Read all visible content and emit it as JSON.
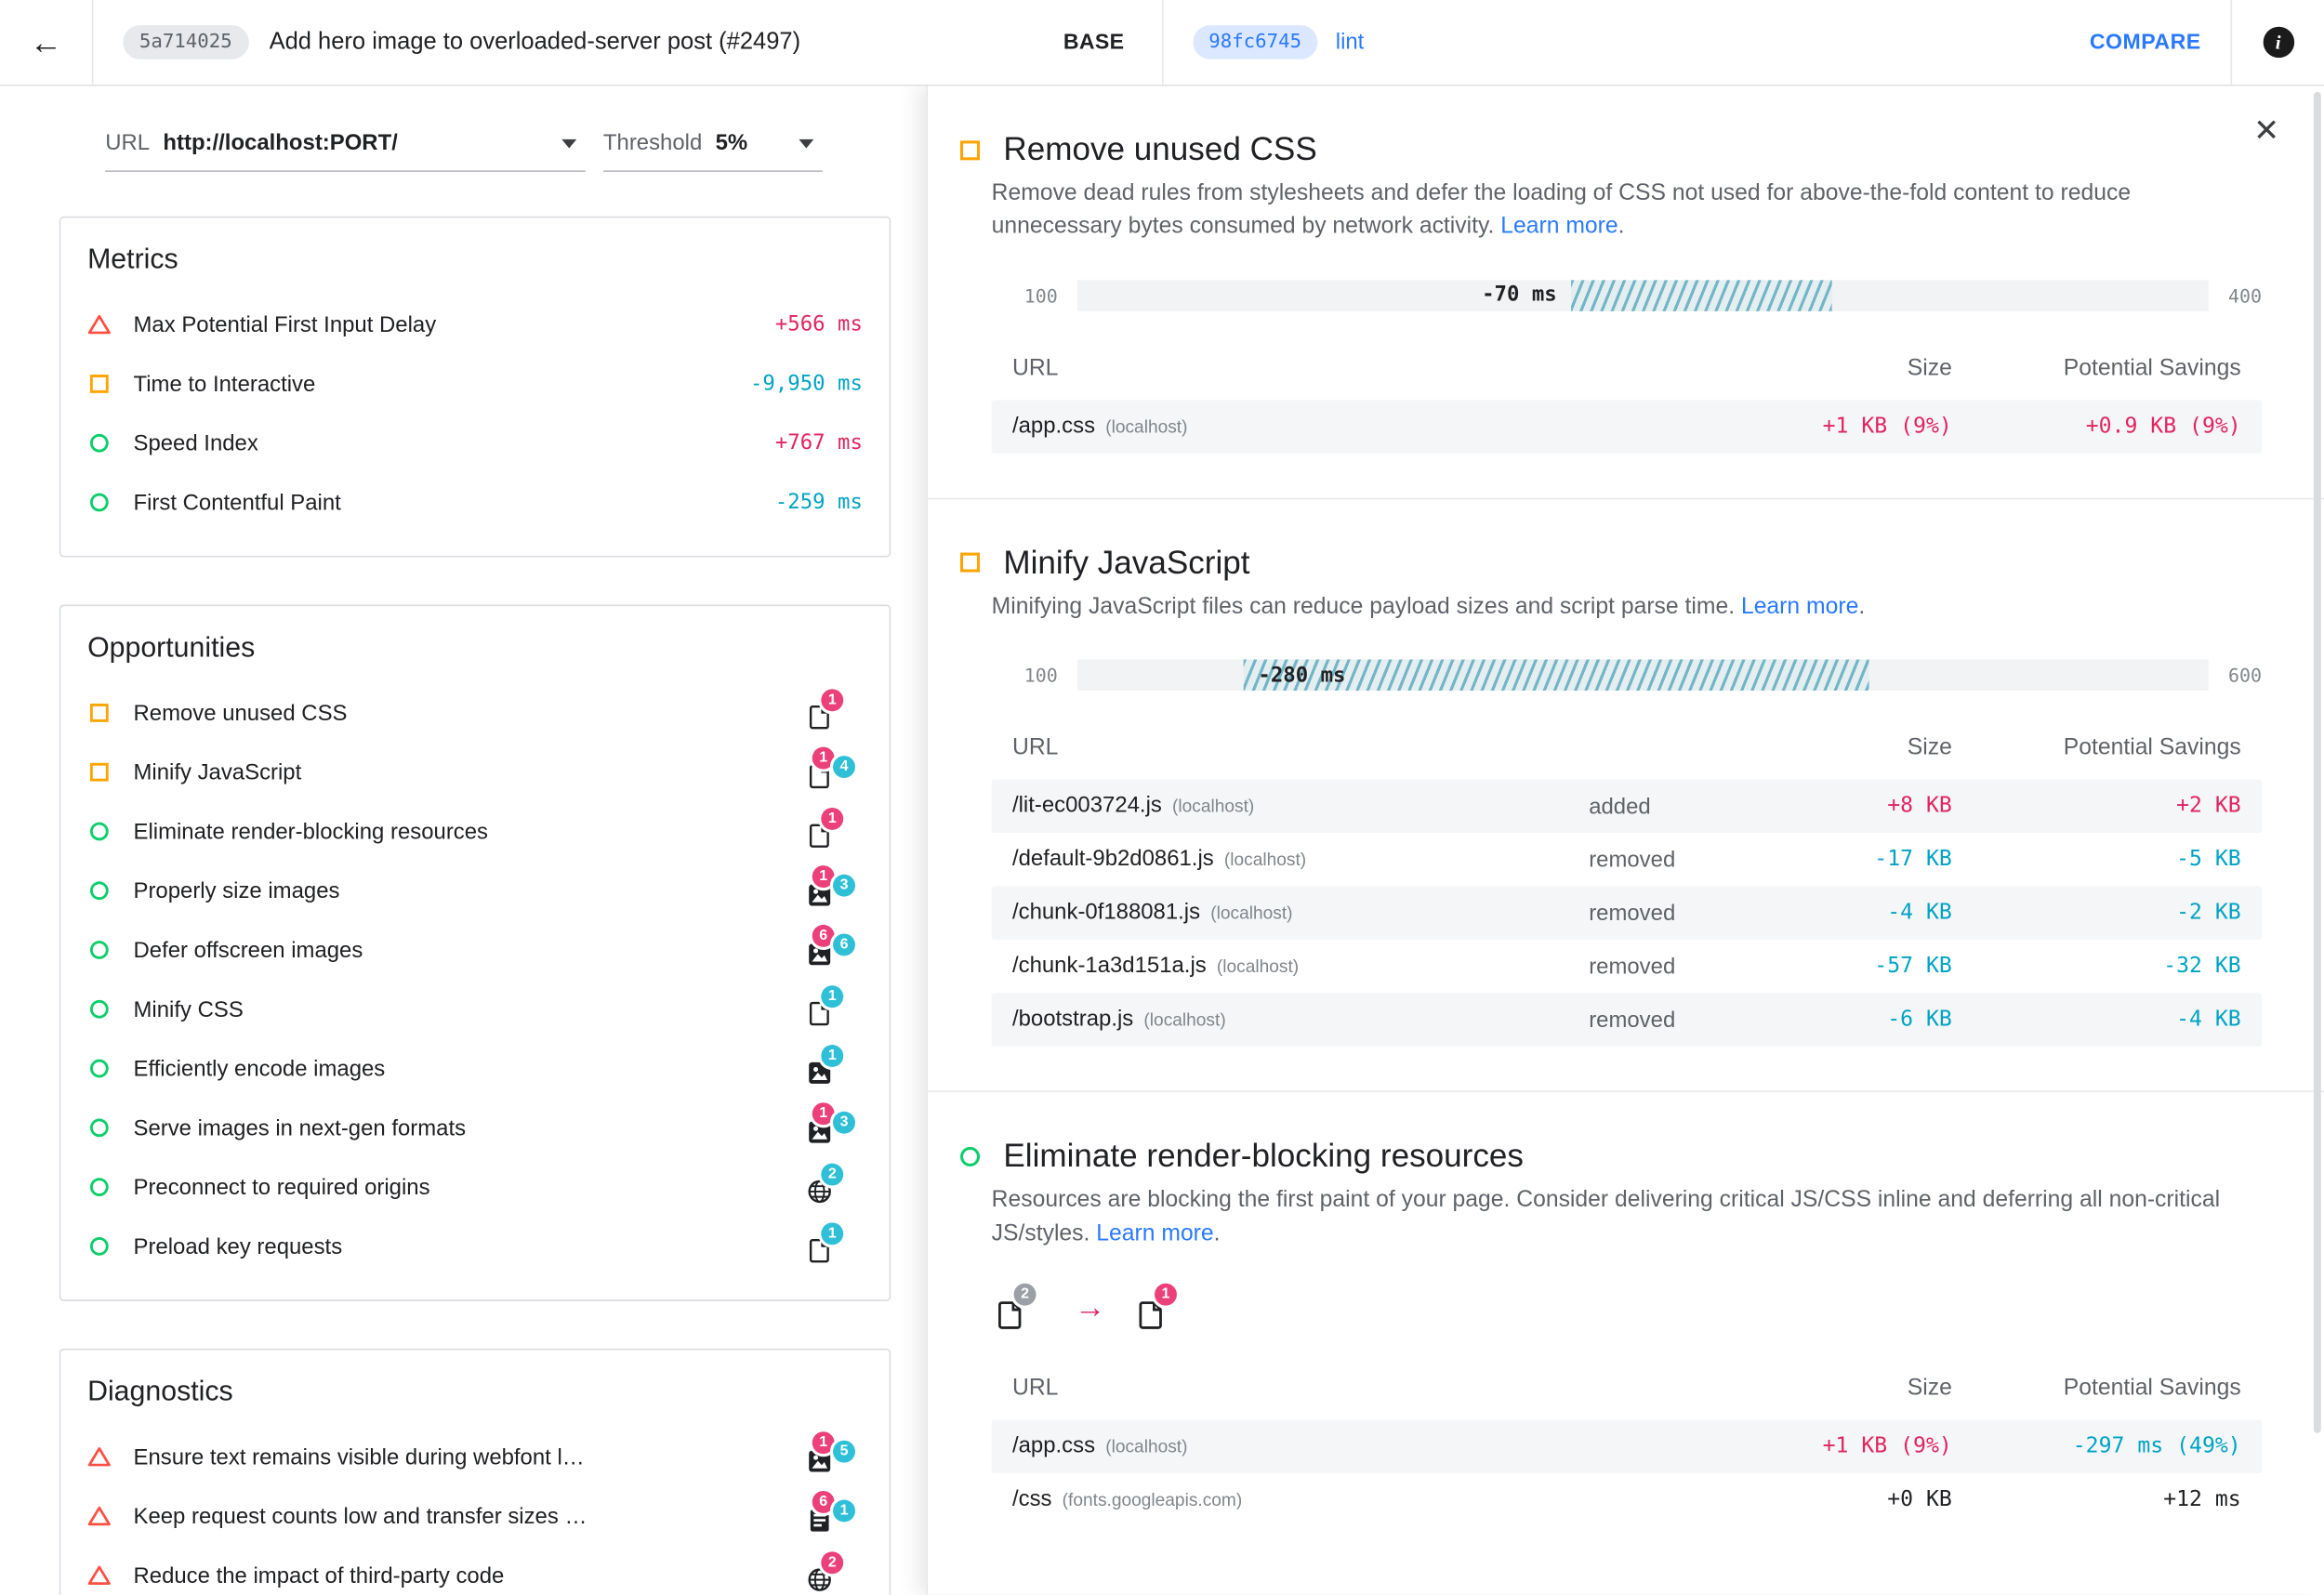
{
  "topbar": {
    "back_icon": "←",
    "base_hash": "5a714025",
    "base_title": "Add hero image to overloaded-server post (#2497)",
    "base_label": "BASE",
    "compare_hash": "98fc6745",
    "compare_name": "lint",
    "compare_label": "COMPARE",
    "info_icon": "i"
  },
  "controls": {
    "url_label": "URL",
    "url_value": "http://localhost:PORT/",
    "threshold_label": "Threshold",
    "threshold_value": "5%"
  },
  "left": {
    "metrics": {
      "title": "Metrics",
      "rows": [
        {
          "status": "fail",
          "label": "Max Potential First Input Delay",
          "value": "+566 ms",
          "trend": "bad"
        },
        {
          "status": "average",
          "label": "Time to Interactive",
          "value": "-9,950 ms",
          "trend": "good"
        },
        {
          "status": "pass",
          "label": "Speed Index",
          "value": "+767 ms",
          "trend": "bad"
        },
        {
          "status": "pass",
          "label": "First Contentful Paint",
          "value": "-259 ms",
          "trend": "good"
        }
      ]
    },
    "opportunities": {
      "title": "Opportunities",
      "rows": [
        {
          "status": "average",
          "label": "Remove unused CSS",
          "resource": "doc",
          "badges": [
            {
              "text": "1",
              "tone": "bad"
            }
          ]
        },
        {
          "status": "average",
          "label": "Minify JavaScript",
          "resource": "doc",
          "badges": [
            {
              "text": "1",
              "tone": "bad"
            },
            {
              "text": "4",
              "tone": "good"
            }
          ]
        },
        {
          "status": "pass",
          "label": "Eliminate render-blocking resources",
          "resource": "doc",
          "badges": [
            {
              "text": "1",
              "tone": "bad"
            }
          ]
        },
        {
          "status": "pass",
          "label": "Properly size images",
          "resource": "image",
          "badges": [
            {
              "text": "1",
              "tone": "bad"
            },
            {
              "text": "3",
              "tone": "good"
            }
          ]
        },
        {
          "status": "pass",
          "label": "Defer offscreen images",
          "resource": "image",
          "badges": [
            {
              "text": "6",
              "tone": "bad"
            },
            {
              "text": "6",
              "tone": "good"
            }
          ]
        },
        {
          "status": "pass",
          "label": "Minify CSS",
          "resource": "doc",
          "badges": [
            {
              "text": "1",
              "tone": "good"
            }
          ]
        },
        {
          "status": "pass",
          "label": "Efficiently encode images",
          "resource": "image",
          "badges": [
            {
              "text": "1",
              "tone": "good"
            }
          ]
        },
        {
          "status": "pass",
          "label": "Serve images in next-gen formats",
          "resource": "image",
          "badges": [
            {
              "text": "1",
              "tone": "bad"
            },
            {
              "text": "3",
              "tone": "good"
            }
          ]
        },
        {
          "status": "pass",
          "label": "Preconnect to required origins",
          "resource": "globe",
          "badges": [
            {
              "text": "2",
              "tone": "good"
            }
          ]
        },
        {
          "status": "pass",
          "label": "Preload key requests",
          "resource": "doc",
          "badges": [
            {
              "text": "1",
              "tone": "good"
            }
          ]
        }
      ]
    },
    "diagnostics": {
      "title": "Diagnostics",
      "rows": [
        {
          "status": "fail",
          "label": "Ensure text remains visible during webfont l…",
          "resource": "image",
          "badges": [
            {
              "text": "1",
              "tone": "bad"
            },
            {
              "text": "5",
              "tone": "good"
            }
          ]
        },
        {
          "status": "fail",
          "label": "Keep request counts low and transfer sizes …",
          "resource": "list",
          "badges": [
            {
              "text": "6",
              "tone": "bad"
            },
            {
              "text": "1",
              "tone": "good"
            }
          ]
        },
        {
          "status": "fail",
          "label": "Reduce the impact of third-party code",
          "resource": "globe",
          "badges": [
            {
              "text": "2",
              "tone": "bad"
            }
          ]
        }
      ]
    }
  },
  "details": {
    "close_icon": "✕",
    "sections": [
      {
        "status": "average",
        "title": "Remove unused CSS",
        "description": "Remove dead rules from stylesheets and defer the loading of CSS not used for above-the-fold content to reduce unnecessary bytes consumed by network activity.",
        "learn_more": "Learn more",
        "range": {
          "min": "100",
          "max": "400",
          "label": "-70 ms",
          "hatch_left": 43.7,
          "hatch_width": 23,
          "label_inside": false
        },
        "columns": {
          "url": "URL",
          "size": "Size",
          "savings": "Potential Savings"
        },
        "rows": [
          {
            "file": "/app.css",
            "host": "(localhost)",
            "state": "",
            "size": "+1 KB (9%)",
            "size_trend": "bad",
            "savings": "+0.9 KB (9%)",
            "savings_trend": "bad"
          }
        ]
      },
      {
        "status": "average",
        "title": "Minify JavaScript",
        "description": "Minifying JavaScript files can reduce payload sizes and script parse time.",
        "learn_more": "Learn more",
        "range": {
          "min": "100",
          "max": "600",
          "label": "-280 ms",
          "hatch_left": 14.7,
          "hatch_width": 55.3,
          "label_inside": true
        },
        "columns": {
          "url": "URL",
          "size": "Size",
          "savings": "Potential Savings"
        },
        "rows": [
          {
            "file": "/lit-ec003724.js",
            "host": "(localhost)",
            "state": "added",
            "size": "+8 KB",
            "size_trend": "bad",
            "savings": "+2 KB",
            "savings_trend": "bad"
          },
          {
            "file": "/default-9b2d0861.js",
            "host": "(localhost)",
            "state": "removed",
            "size": "-17 KB",
            "size_trend": "good",
            "savings": "-5 KB",
            "savings_trend": "good"
          },
          {
            "file": "/chunk-0f188081.js",
            "host": "(localhost)",
            "state": "removed",
            "size": "-4 KB",
            "size_trend": "good",
            "savings": "-2 KB",
            "savings_trend": "good"
          },
          {
            "file": "/chunk-1a3d151a.js",
            "host": "(localhost)",
            "state": "removed",
            "size": "-57 KB",
            "size_trend": "good",
            "savings": "-32 KB",
            "savings_trend": "good"
          },
          {
            "file": "/bootstrap.js",
            "host": "(localhost)",
            "state": "removed",
            "size": "-6 KB",
            "size_trend": "good",
            "savings": "-4 KB",
            "savings_trend": "good"
          }
        ]
      },
      {
        "status": "pass",
        "title": "Eliminate render-blocking resources",
        "description": "Resources are blocking the first paint of your page. Consider delivering critical JS/CSS inline and deferring all non-critical JS/styles.",
        "learn_more": "Learn more",
        "flow": {
          "from_badge": "2",
          "arrow": "→",
          "to_badge": "1"
        },
        "columns": {
          "url": "URL",
          "size": "Size",
          "savings": "Potential Savings"
        },
        "rows": [
          {
            "file": "/app.css",
            "host": "(localhost)",
            "state": "",
            "size": "+1 KB (9%)",
            "size_trend": "bad",
            "savings": "-297 ms (49%)",
            "savings_trend": "good"
          },
          {
            "file": "/css",
            "host": "(fonts.googleapis.com)",
            "state": "",
            "size": "+0 KB",
            "size_trend": "neutral",
            "savings": "+12 ms",
            "savings_trend": "neutral"
          }
        ]
      }
    ]
  },
  "colors": {
    "bad": "#e0255f",
    "bad_badge": "#ec407a",
    "good": "#00a3c4",
    "good_badge": "#2fc0d8",
    "gray_badge": "#9aa0a6",
    "link": "#2979ff",
    "pass": "#0cce6b",
    "average": "#ffa400",
    "fail": "#ff4e42"
  }
}
